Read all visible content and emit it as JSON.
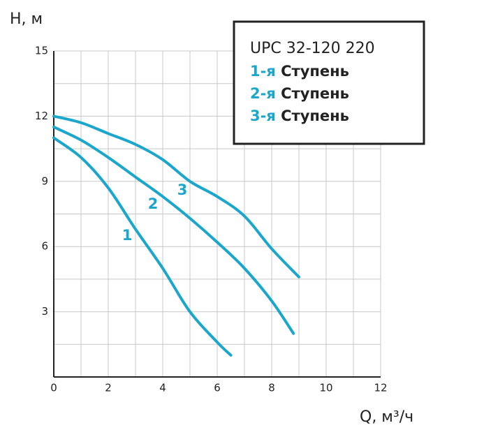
{
  "chart_data": {
    "type": "line",
    "y_label": "H, м",
    "x_label": "Q, м³/ч",
    "legend_title": "UPC 32-120 220",
    "xlim": [
      0,
      12
    ],
    "xticks": [
      0,
      2,
      4,
      6,
      8,
      10,
      12
    ],
    "minor_xticks": [
      1,
      3,
      5,
      7,
      9,
      11
    ],
    "ylim": [
      0,
      15
    ],
    "yticks": [
      3,
      6,
      9,
      12,
      15
    ],
    "minor_yticks": [
      1.5,
      4.5,
      7.5,
      10.5,
      13.5
    ],
    "grid": true,
    "series": [
      {
        "name": "1-я Ступень",
        "label": "1",
        "color": "#1ba6cc",
        "x": [
          0,
          1,
          2,
          3,
          4,
          5,
          6,
          6.5
        ],
        "values": [
          11,
          10.1,
          8.7,
          6.8,
          5,
          3,
          1.6,
          1
        ]
      },
      {
        "name": "2-я Ступень",
        "label": "2",
        "color": "#1ba6cc",
        "x": [
          0,
          1,
          2,
          3,
          4,
          5,
          6,
          7,
          8,
          8.8
        ],
        "values": [
          11.5,
          10.9,
          10.1,
          9.2,
          8.3,
          7.3,
          6.2,
          5,
          3.5,
          2
        ]
      },
      {
        "name": "3-я Ступень",
        "label": "3",
        "color": "#1ba6cc",
        "x": [
          0,
          1,
          2,
          3,
          4,
          5,
          6,
          7,
          8,
          9
        ],
        "values": [
          12,
          11.7,
          11.2,
          10.7,
          10,
          9,
          8.3,
          7.4,
          5.9,
          4.6
        ]
      }
    ]
  }
}
